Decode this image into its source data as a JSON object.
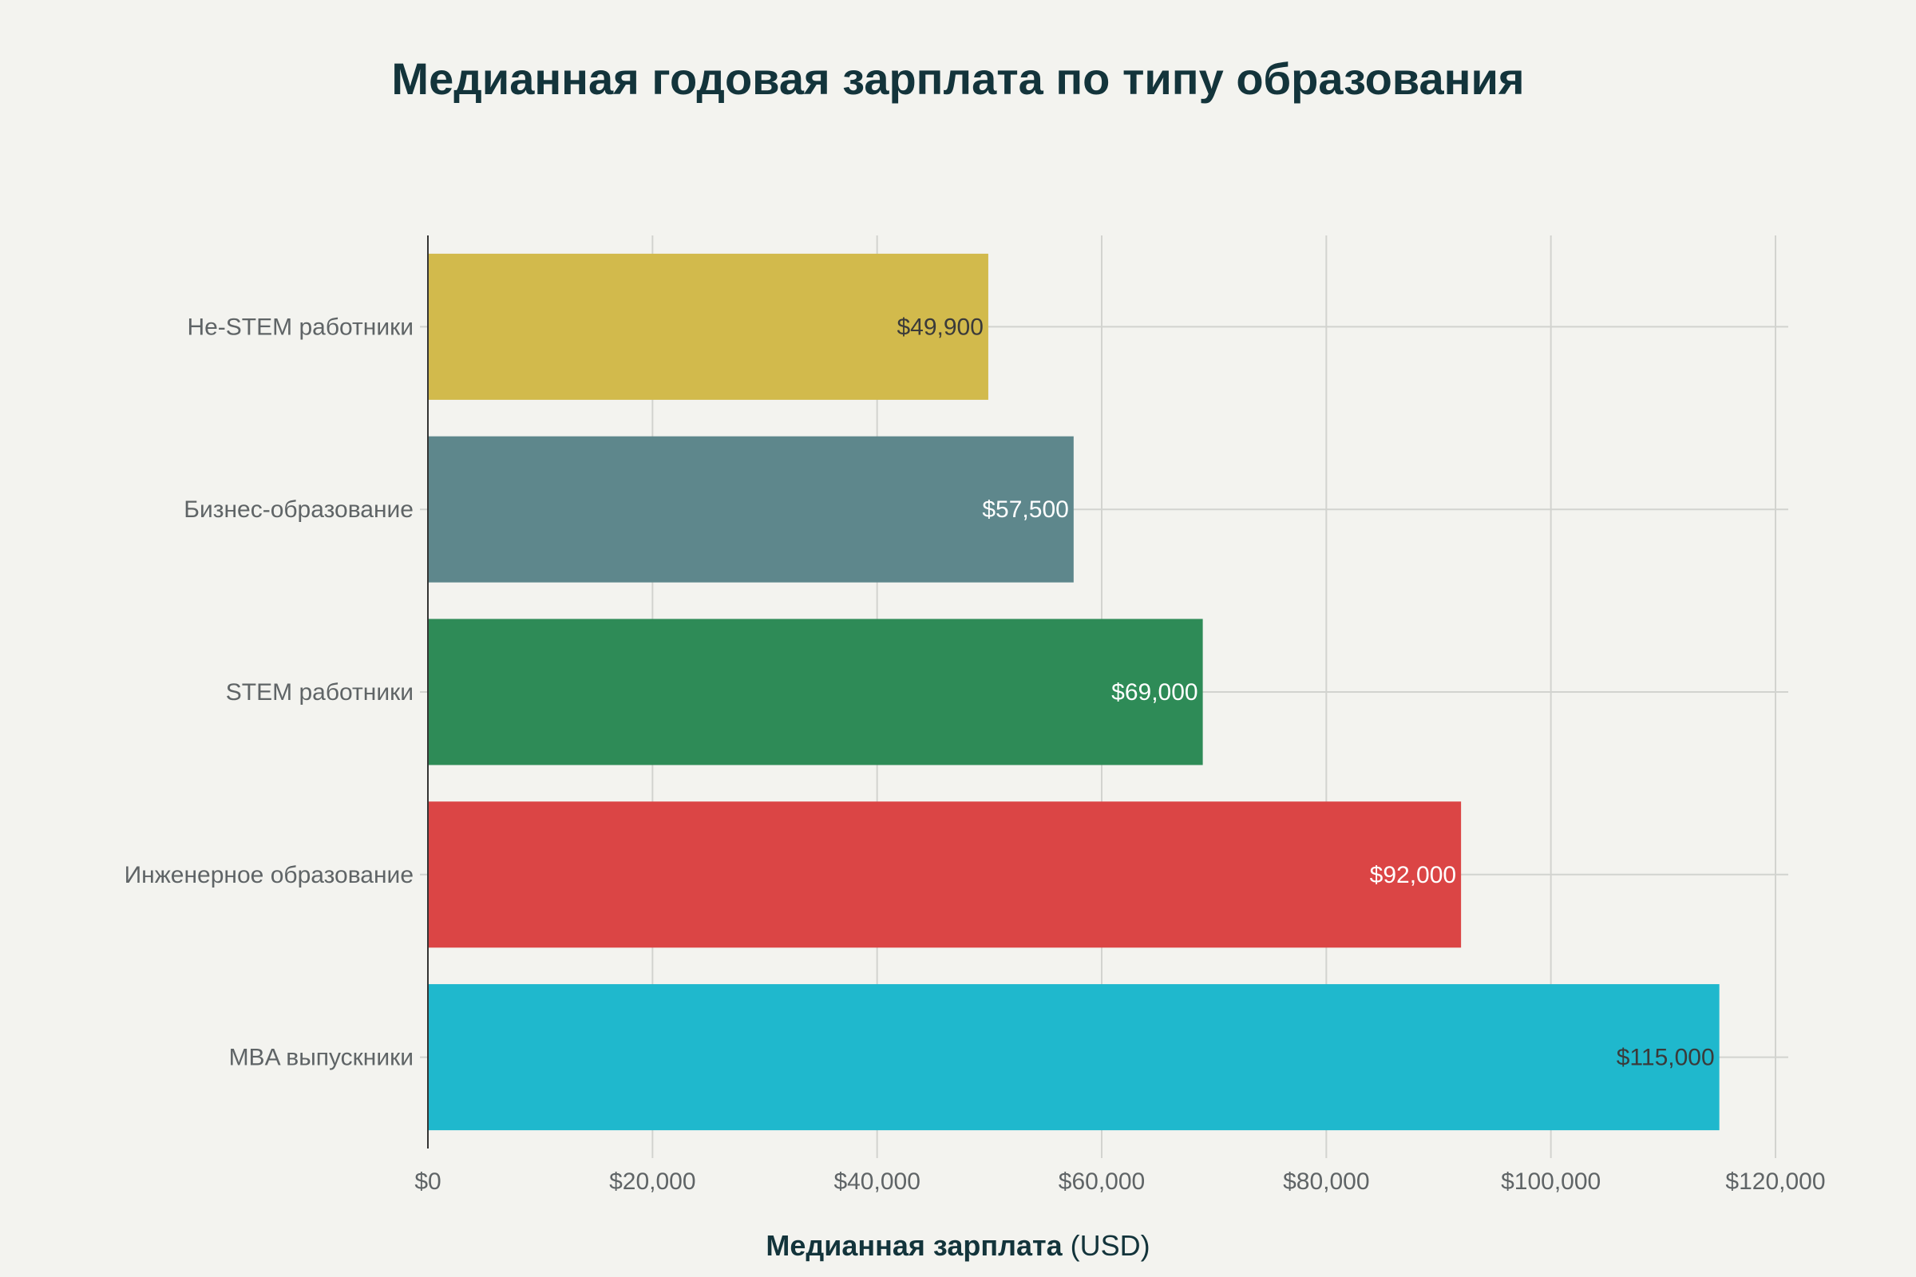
{
  "chart_data": {
    "type": "bar",
    "orientation": "horizontal",
    "title": "Медианная годовая зарплата по типу образования",
    "xlabel_bold": "Медианная зарплата",
    "xlabel_unit": "(USD)",
    "ylabel": "",
    "categories": [
      "Не-STEM работники",
      "Бизнес-образование",
      "STEM работники",
      "Инженерное образование",
      "MBA выпускники"
    ],
    "values": [
      49900,
      57500,
      69000,
      92000,
      115000
    ],
    "data_labels": [
      "$49,900",
      "$57,500",
      "$69,000",
      "$92,000",
      "$115,000"
    ],
    "colors": [
      "#D2BA4C",
      "#5E878C",
      "#2E8B57",
      "#DB4545",
      "#1FB8CD"
    ],
    "label_colors": [
      "#3a3a3a",
      "#ffffff",
      "#ffffff",
      "#ffffff",
      "#3a3a3a"
    ],
    "xlim": [
      0,
      120000
    ],
    "xticks": [
      0,
      20000,
      40000,
      60000,
      80000,
      100000,
      120000
    ],
    "xtick_labels": [
      "$0",
      "$20,000",
      "$40,000",
      "$60,000",
      "$80,000",
      "$100,000",
      "$120,000"
    ],
    "grid": true,
    "legend": "none"
  }
}
